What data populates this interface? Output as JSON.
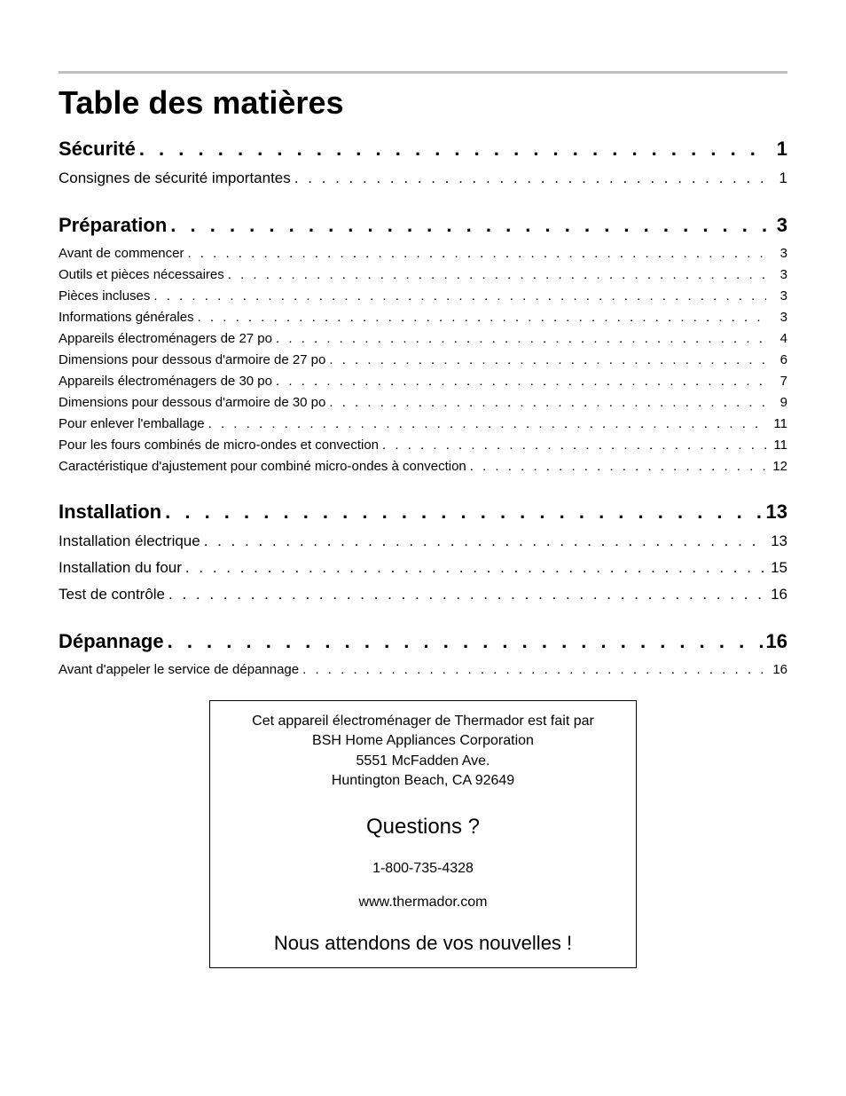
{
  "title": "Table des matières",
  "sections": [
    {
      "label": "Sécurité",
      "page": "1",
      "items_style": "lg",
      "items": [
        {
          "label": "Consignes de sécurité importantes",
          "page": "1"
        }
      ]
    },
    {
      "label": "Préparation",
      "page": "3",
      "items_style": "sm",
      "items": [
        {
          "label": "Avant de commencer",
          "page": "3"
        },
        {
          "label": "Outils et pièces nécessaires",
          "page": "3"
        },
        {
          "label": "Pièces incluses",
          "page": "3"
        },
        {
          "label": "Informations générales",
          "page": "3"
        },
        {
          "label": "Appareils électroménagers de 27 po",
          "page": "4"
        },
        {
          "label": "Dimensions pour dessous d'armoire de 27 po",
          "page": "6"
        },
        {
          "label": "Appareils électroménagers de 30 po",
          "page": "7"
        },
        {
          "label": "Dimensions pour dessous d'armoire de 30 po",
          "page": "9"
        },
        {
          "label": "Pour enlever l'emballage",
          "page": "11"
        },
        {
          "label": "Pour les fours combinés de micro-ondes et convection",
          "page": "11"
        },
        {
          "label": "Caractéristique d'ajustement pour combiné micro-ondes à convection",
          "page": "12"
        }
      ]
    },
    {
      "label": "Installation",
      "page": "13",
      "items_style": "lg",
      "items": [
        {
          "label": "Installation électrique",
          "page": "13"
        },
        {
          "label": "Installation du four",
          "page": "15"
        },
        {
          "label": "Test de contrôle",
          "page": "16"
        }
      ]
    },
    {
      "label": "Dépannage",
      "page": "16",
      "items_style": "sm",
      "items": [
        {
          "label": "Avant d'appeler le service de dépannage",
          "page": "16"
        }
      ]
    }
  ],
  "info_box": {
    "line1": "Cet appareil électroménager de Thermador est fait par",
    "line2": "BSH Home Appliances Corporation",
    "line3": "5551 McFadden Ave.",
    "line4": "Huntington Beach, CA 92649",
    "questions": "Questions ?",
    "phone": "1-800-735-4328",
    "website": "www.thermador.com",
    "closing": "Nous attendons de vos nouvelles !"
  },
  "dots_fill": ". . . . . . . . . . . . . . . . . . . . . . . . . . . . . . . . . . . . . . . . . . . . . . . . . . . . . . . . . . . . . . . . . . . . . . . . . . . . . . . . . . . . . . . . . . . . . . . . . . . . . . . . . . . . . . . . . . . . . . . . . . . . . . . ."
}
